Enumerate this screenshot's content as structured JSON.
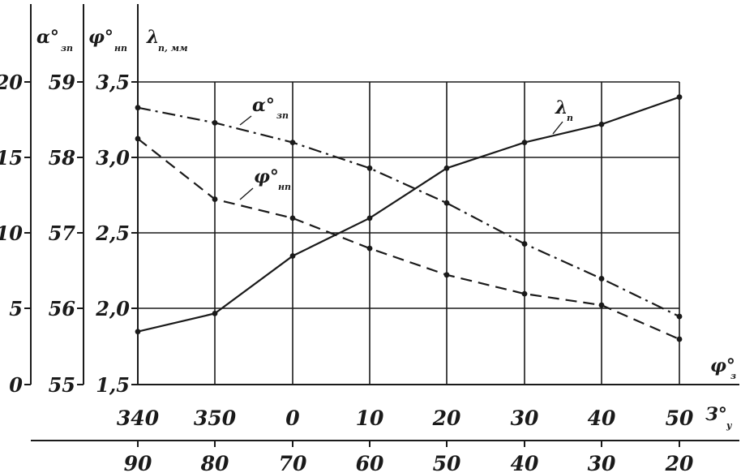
{
  "chart_data": {
    "type": "line",
    "axes": {
      "alpha": {
        "label_main": "α°",
        "label_sub": "зп",
        "ticks": [
          "20",
          "15",
          "10",
          "5",
          "0"
        ],
        "range": [
          0,
          20
        ]
      },
      "phi_np": {
        "label_main": "φ°",
        "label_sub": "нп",
        "ticks": [
          "59",
          "58",
          "57",
          "56",
          "55"
        ],
        "range": [
          55,
          59
        ]
      },
      "lambda": {
        "label_main": "λ",
        "label_sub": "п, мм",
        "ticks": [
          "3,5",
          "3,0",
          "2,5",
          "2,0",
          "1,5"
        ],
        "range": [
          1.5,
          3.5
        ]
      },
      "phi_z": {
        "label_main": "φ°",
        "label_sub": "з",
        "ticks": [
          "340",
          "350",
          "0",
          "10",
          "20",
          "30",
          "40",
          "50"
        ]
      },
      "z_y": {
        "label_main": "З°",
        "label_sub": "у",
        "ticks": [
          "90",
          "80",
          "70",
          "60",
          "50",
          "40",
          "30",
          "20"
        ]
      }
    },
    "categories": [
      "340",
      "350",
      "0",
      "10",
      "20",
      "30",
      "40",
      "50"
    ],
    "series": [
      {
        "name_main": "λ",
        "name_sub": "п",
        "axis": "lambda",
        "style": "solid",
        "values": [
          1.85,
          1.97,
          2.35,
          2.6,
          2.93,
          3.1,
          3.22,
          3.4
        ]
      },
      {
        "name_main": "α°",
        "name_sub": "зп",
        "axis": "alpha",
        "style": "dashdot",
        "values": [
          18.3,
          17.3,
          16.0,
          14.3,
          12.0,
          9.3,
          7.0,
          4.5
        ]
      },
      {
        "name_main": "φ°",
        "name_sub": "нп",
        "axis": "phi_np",
        "style": "dashed",
        "values": [
          58.25,
          57.45,
          57.2,
          56.8,
          56.45,
          56.2,
          56.05,
          55.6
        ]
      }
    ],
    "grid": true
  }
}
